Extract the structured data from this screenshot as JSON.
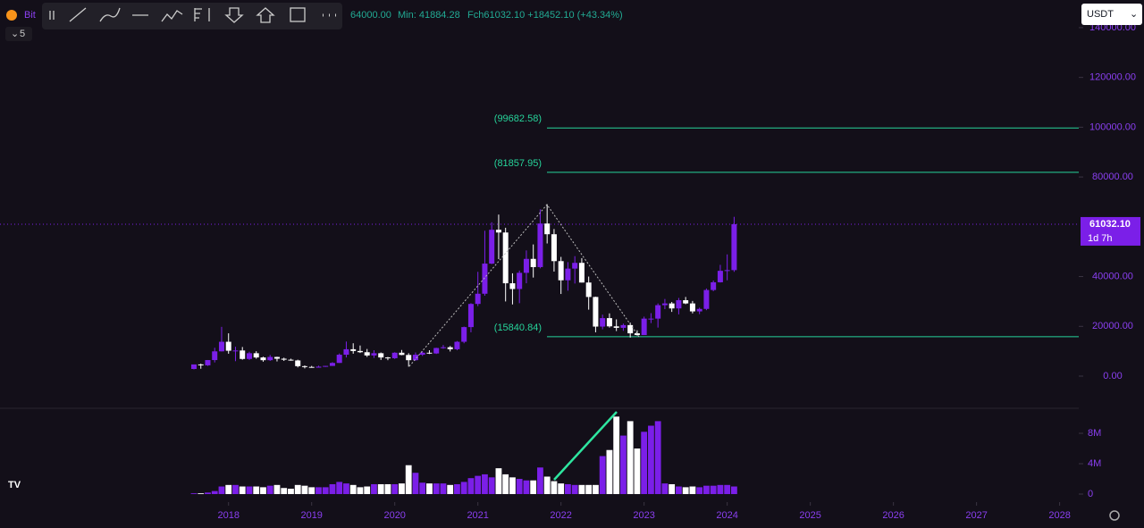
{
  "toolbar": {
    "symbol": "Bit",
    "interval": "5"
  },
  "header": {
    "high": "64000.00",
    "low": "Min: 41884.28",
    "change": "Fch61032.10 +18452.10 (+43.34%)"
  },
  "currency": "USDT",
  "chart_data": {
    "type": "candlestick",
    "up_color": "#7b1fe8",
    "down_color": "#ffffff",
    "level_color": "#26d39a",
    "x": [
      "2017-08",
      "2017-09",
      "2017-10",
      "2017-11",
      "2017-12",
      "2018-01",
      "2018-02",
      "2018-03",
      "2018-04",
      "2018-05",
      "2018-06",
      "2018-07",
      "2018-08",
      "2018-09",
      "2018-10",
      "2018-11",
      "2018-12",
      "2019-01",
      "2019-02",
      "2019-03",
      "2019-04",
      "2019-05",
      "2019-06",
      "2019-07",
      "2019-08",
      "2019-09",
      "2019-10",
      "2019-11",
      "2019-12",
      "2020-01",
      "2020-02",
      "2020-03",
      "2020-04",
      "2020-05",
      "2020-06",
      "2020-07",
      "2020-08",
      "2020-09",
      "2020-10",
      "2020-11",
      "2020-12",
      "2021-01",
      "2021-02",
      "2021-03",
      "2021-04",
      "2021-05",
      "2021-06",
      "2021-07",
      "2021-08",
      "2021-09",
      "2021-10",
      "2021-11",
      "2021-12",
      "2022-01",
      "2022-02",
      "2022-03",
      "2022-04",
      "2022-05",
      "2022-06",
      "2022-07",
      "2022-08",
      "2022-09",
      "2022-10",
      "2022-11",
      "2022-12",
      "2023-01",
      "2023-02",
      "2023-03",
      "2023-04",
      "2023-05",
      "2023-06",
      "2023-07",
      "2023-08",
      "2023-09",
      "2023-10",
      "2023-11",
      "2023-12",
      "2024-01",
      "2024-02"
    ],
    "open": [
      2870,
      4700,
      4340,
      6450,
      9950,
      13800,
      10200,
      10300,
      6900,
      9200,
      7500,
      6400,
      7700,
      7000,
      6600,
      6300,
      4000,
      3700,
      3400,
      3800,
      4100,
      5300,
      8600,
      10800,
      10100,
      9600,
      8300,
      9200,
      7500,
      7200,
      9400,
      8500,
      6400,
      8600,
      9400,
      9100,
      11300,
      11600,
      10800,
      13800,
      19700,
      29000,
      33100,
      45200,
      58800,
      57700,
      37300,
      35000,
      41500,
      47100,
      43800,
      61300,
      57000,
      46200,
      38500,
      43200,
      45500,
      37600,
      31800,
      19900,
      23300,
      20000,
      19400,
      20500,
      17200,
      16500,
      23100,
      23100,
      28500,
      29200,
      27200,
      30500,
      29200,
      26000,
      27000,
      34600,
      37700,
      42300,
      42580
    ],
    "high": [
      4480,
      4980,
      6470,
      11400,
      19800,
      17200,
      11800,
      11700,
      9800,
      10000,
      7800,
      8500,
      7800,
      7400,
      7000,
      6600,
      4300,
      4100,
      4200,
      4100,
      5600,
      9100,
      13900,
      13200,
      12300,
      10900,
      10400,
      9500,
      7700,
      9600,
      10500,
      9200,
      9500,
      10000,
      10400,
      11400,
      12500,
      12100,
      14100,
      19900,
      29300,
      41900,
      58400,
      61800,
      64900,
      59600,
      41300,
      42400,
      50500,
      52900,
      67000,
      69000,
      59100,
      47900,
      45800,
      48200,
      47400,
      40000,
      31900,
      24700,
      25200,
      22800,
      21100,
      21500,
      18400,
      23900,
      25300,
      29200,
      31000,
      29800,
      31400,
      31800,
      30200,
      27500,
      35200,
      38400,
      44700,
      48900,
      64000
    ],
    "low": [
      2700,
      2970,
      4100,
      5500,
      9900,
      9000,
      6000,
      6600,
      6500,
      7000,
      5800,
      6100,
      5900,
      6100,
      6200,
      3500,
      3100,
      3400,
      3400,
      3700,
      4100,
      5300,
      7500,
      9000,
      9300,
      7700,
      7300,
      6500,
      6400,
      6900,
      8400,
      3800,
      6200,
      8100,
      8900,
      8900,
      11000,
      9900,
      10400,
      13200,
      17600,
      28100,
      32300,
      45000,
      47000,
      30000,
      28800,
      29300,
      37300,
      39600,
      43300,
      53300,
      42000,
      33000,
      34300,
      37200,
      37600,
      26700,
      17600,
      18800,
      19500,
      18100,
      18200,
      15500,
      16300,
      16500,
      21300,
      19500,
      26900,
      25800,
      24800,
      28900,
      25200,
      24900,
      26500,
      34100,
      37600,
      38500,
      41884.28
    ],
    "close": [
      4700,
      4340,
      6450,
      9950,
      13800,
      10200,
      10300,
      6900,
      9200,
      7500,
      6400,
      7700,
      7000,
      6600,
      6300,
      4000,
      3700,
      3400,
      3800,
      4100,
      5300,
      8600,
      10800,
      10100,
      9600,
      8300,
      9200,
      7500,
      7200,
      9400,
      8500,
      6400,
      8600,
      9400,
      9100,
      11300,
      11600,
      10800,
      13800,
      19700,
      29000,
      33100,
      45200,
      58800,
      57700,
      37300,
      35000,
      41500,
      47100,
      43800,
      61300,
      57000,
      46200,
      38500,
      43200,
      45500,
      37600,
      31800,
      19900,
      23300,
      20000,
      19400,
      20500,
      17200,
      16500,
      23100,
      23100,
      28500,
      29200,
      27200,
      30500,
      29200,
      26000,
      27000,
      34600,
      37700,
      42300,
      42580,
      61032.1
    ],
    "volume": {
      "values": [
        0.1,
        0.1,
        0.2,
        0.4,
        1.0,
        1.2,
        1.2,
        1.0,
        1.0,
        1.0,
        0.9,
        1.1,
        1.2,
        0.8,
        0.7,
        1.2,
        1.1,
        0.9,
        0.9,
        0.9,
        1.3,
        1.6,
        1.4,
        1.2,
        0.9,
        1.0,
        1.3,
        1.3,
        1.3,
        1.3,
        1.4,
        3.8,
        2.8,
        1.5,
        1.4,
        1.4,
        1.4,
        1.2,
        1.3,
        1.6,
        2.1,
        2.4,
        2.6,
        2.2,
        3.4,
        2.6,
        2.2,
        2.0,
        1.8,
        1.8,
        3.5,
        2.3,
        1.7,
        1.4,
        1.3,
        1.2,
        1.2,
        1.2,
        1.2,
        5.0,
        5.8,
        10.2,
        7.7,
        9.6,
        6.0,
        8.2,
        9.0,
        9.6,
        1.4,
        1.3,
        1.0,
        0.9,
        1.0,
        0.9,
        1.1,
        1.1,
        1.2,
        1.2,
        1.0
      ],
      "ylim": [
        -0.82,
        11.06
      ],
      "yticks": [
        0,
        {
          "value": 4,
          "label": "4M"
        },
        {
          "value": 8,
          "label": "8M"
        }
      ]
    },
    "xlim": [
      2015.25,
      2028.23
    ],
    "xticks": [
      2018,
      2019,
      2020,
      2021,
      2022,
      2023,
      2024,
      2025,
      2026,
      2027,
      2028
    ],
    "ylim": [
      -12920,
      151100
    ],
    "yticks": [
      {
        "value": 0,
        "label": "0.00"
      },
      {
        "value": 20000,
        "label": "20000.00"
      },
      {
        "value": 40000,
        "label": "40000.00"
      },
      {
        "value": 80000,
        "label": "80000.00"
      },
      {
        "value": 100000,
        "label": "100000.00"
      },
      {
        "value": 120000,
        "label": "120000.00"
      },
      {
        "value": 140000,
        "label": "140000.00"
      }
    ],
    "levels": [
      {
        "value": 99682.58,
        "label": "(99682.58)"
      },
      {
        "value": 81857.95,
        "label": "(81857.95)"
      },
      {
        "value": 15840.84,
        "label": "(15840.84)"
      }
    ],
    "last_price": {
      "value": 61032.1,
      "label": "61032.10"
    },
    "countdown": "1d 7h"
  }
}
